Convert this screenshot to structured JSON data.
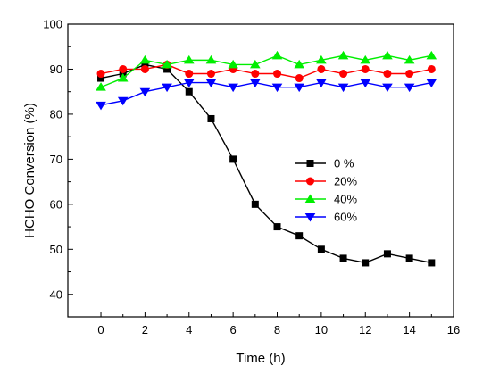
{
  "chart_data": {
    "type": "line",
    "xlabel": "Time (h)",
    "ylabel": "HCHO Conversion (%)",
    "xlim": [
      -1.5,
      16
    ],
    "ylim": [
      35,
      100
    ],
    "x_ticks": [
      0,
      2,
      4,
      6,
      8,
      10,
      12,
      14,
      16
    ],
    "y_ticks": [
      40,
      50,
      60,
      70,
      80,
      90,
      100
    ],
    "grid": false,
    "legend_position": "center-right",
    "x": [
      0,
      1,
      2,
      3,
      4,
      5,
      6,
      7,
      8,
      9,
      10,
      11,
      12,
      13,
      14,
      15
    ],
    "series": [
      {
        "name": "0 %",
        "color": "#000000",
        "marker": "square",
        "values": [
          88,
          89,
          91,
          90,
          85,
          79,
          70,
          60,
          55,
          53,
          50,
          48,
          47,
          49,
          48,
          47
        ]
      },
      {
        "name": "20%",
        "color": "#ff0000",
        "marker": "circle",
        "values": [
          89,
          90,
          90,
          91,
          89,
          89,
          90,
          89,
          89,
          88,
          90,
          89,
          90,
          89,
          89,
          90
        ]
      },
      {
        "name": "40%",
        "color": "#00ee00",
        "marker": "triangle-up",
        "values": [
          86,
          88,
          92,
          91,
          92,
          92,
          91,
          91,
          93,
          91,
          92,
          93,
          92,
          93,
          92,
          93
        ]
      },
      {
        "name": "60%",
        "color": "#0000ff",
        "marker": "triangle-down",
        "values": [
          82,
          83,
          85,
          86,
          87,
          87,
          86,
          87,
          86,
          86,
          87,
          86,
          87,
          86,
          86,
          87
        ]
      }
    ]
  }
}
